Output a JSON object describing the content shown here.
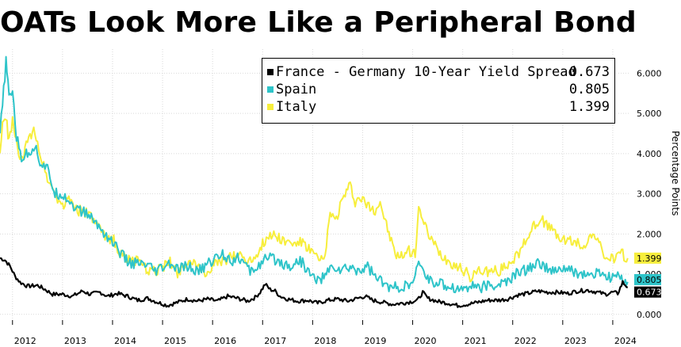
{
  "title": "OATs Look More Like a Peripheral Bond",
  "chart_data": {
    "type": "line",
    "title": "OATs Look More Like a Peripheral Bond",
    "ylabel": "Percentage Points",
    "xlabel": "",
    "ylim": [
      -0.3,
      6.6
    ],
    "yticks": [
      "0.000",
      "1.000",
      "2.000",
      "3.000",
      "4.000",
      "5.000",
      "6.000"
    ],
    "ytick_values": [
      0,
      1,
      2,
      3,
      4,
      5,
      6
    ],
    "xticks": [
      "2012",
      "2013",
      "2014",
      "2015",
      "2016",
      "2017",
      "2018",
      "2019",
      "2020",
      "2021",
      "2022",
      "2023",
      "2024"
    ],
    "xtick_values": [
      2012.0,
      2013.0,
      2014.0,
      2015.0,
      2016.0,
      2017.0,
      2018.0,
      2019.0,
      2020.0,
      2021.0,
      2022.0,
      2023.0,
      2024.0
    ],
    "x_range": [
      2011.75,
      2024.35
    ],
    "grid": true,
    "legend_position": "top-right",
    "series": [
      {
        "name": "France - Germany 10-Year Yield Spread",
        "color": "#000000",
        "last_label": "0.673",
        "points": [
          [
            2011.75,
            1.4
          ],
          [
            2011.85,
            1.35
          ],
          [
            2011.95,
            1.2
          ],
          [
            2012.05,
            0.95
          ],
          [
            2012.15,
            0.8
          ],
          [
            2012.3,
            0.7
          ],
          [
            2012.5,
            0.72
          ],
          [
            2012.65,
            0.62
          ],
          [
            2012.8,
            0.5
          ],
          [
            2013.0,
            0.5
          ],
          [
            2013.2,
            0.45
          ],
          [
            2013.4,
            0.58
          ],
          [
            2013.55,
            0.5
          ],
          [
            2013.75,
            0.55
          ],
          [
            2013.9,
            0.45
          ],
          [
            2014.1,
            0.52
          ],
          [
            2014.3,
            0.45
          ],
          [
            2014.5,
            0.35
          ],
          [
            2014.7,
            0.4
          ],
          [
            2014.9,
            0.3
          ],
          [
            2015.1,
            0.22
          ],
          [
            2015.3,
            0.3
          ],
          [
            2015.5,
            0.38
          ],
          [
            2015.7,
            0.33
          ],
          [
            2015.9,
            0.38
          ],
          [
            2016.1,
            0.33
          ],
          [
            2016.3,
            0.45
          ],
          [
            2016.5,
            0.4
          ],
          [
            2016.7,
            0.33
          ],
          [
            2016.85,
            0.42
          ],
          [
            2016.95,
            0.55
          ],
          [
            2017.05,
            0.75
          ],
          [
            2017.15,
            0.62
          ],
          [
            2017.25,
            0.58
          ],
          [
            2017.35,
            0.45
          ],
          [
            2017.5,
            0.38
          ],
          [
            2017.7,
            0.33
          ],
          [
            2017.9,
            0.35
          ],
          [
            2018.1,
            0.28
          ],
          [
            2018.3,
            0.35
          ],
          [
            2018.5,
            0.38
          ],
          [
            2018.7,
            0.33
          ],
          [
            2018.9,
            0.4
          ],
          [
            2019.05,
            0.45
          ],
          [
            2019.2,
            0.35
          ],
          [
            2019.4,
            0.3
          ],
          [
            2019.6,
            0.25
          ],
          [
            2019.8,
            0.28
          ],
          [
            2019.9,
            0.3
          ],
          [
            2020.1,
            0.35
          ],
          [
            2020.2,
            0.55
          ],
          [
            2020.3,
            0.4
          ],
          [
            2020.5,
            0.32
          ],
          [
            2020.7,
            0.28
          ],
          [
            2020.9,
            0.22
          ],
          [
            2021.1,
            0.25
          ],
          [
            2021.3,
            0.3
          ],
          [
            2021.5,
            0.35
          ],
          [
            2021.7,
            0.35
          ],
          [
            2021.9,
            0.38
          ],
          [
            2022.1,
            0.48
          ],
          [
            2022.3,
            0.52
          ],
          [
            2022.5,
            0.58
          ],
          [
            2022.7,
            0.55
          ],
          [
            2022.9,
            0.55
          ],
          [
            2023.1,
            0.52
          ],
          [
            2023.3,
            0.58
          ],
          [
            2023.5,
            0.6
          ],
          [
            2023.7,
            0.55
          ],
          [
            2023.85,
            0.5
          ],
          [
            2024.0,
            0.55
          ],
          [
            2024.1,
            0.52
          ],
          [
            2024.2,
            0.8
          ],
          [
            2024.25,
            0.73
          ],
          [
            2024.3,
            0.673
          ]
        ]
      },
      {
        "name": "Spain",
        "color": "#2ec4c9",
        "last_label": "0.805",
        "points": [
          [
            2011.75,
            4.5
          ],
          [
            2011.8,
            5.2
          ],
          [
            2011.87,
            6.3
          ],
          [
            2011.93,
            5.4
          ],
          [
            2012.0,
            5.6
          ],
          [
            2012.08,
            4.4
          ],
          [
            2012.18,
            3.9
          ],
          [
            2012.3,
            4.0
          ],
          [
            2012.45,
            4.2
          ],
          [
            2012.55,
            3.8
          ],
          [
            2012.7,
            3.6
          ],
          [
            2012.85,
            3.0
          ],
          [
            2013.0,
            3.0
          ],
          [
            2013.15,
            2.8
          ],
          [
            2013.3,
            2.6
          ],
          [
            2013.5,
            2.5
          ],
          [
            2013.65,
            2.3
          ],
          [
            2013.85,
            2.0
          ],
          [
            2014.0,
            1.8
          ],
          [
            2014.15,
            1.55
          ],
          [
            2014.3,
            1.3
          ],
          [
            2014.5,
            1.25
          ],
          [
            2014.7,
            1.2
          ],
          [
            2014.85,
            1.05
          ],
          [
            2015.0,
            1.15
          ],
          [
            2015.15,
            1.25
          ],
          [
            2015.3,
            1.1
          ],
          [
            2015.5,
            1.2
          ],
          [
            2015.7,
            1.05
          ],
          [
            2015.9,
            1.25
          ],
          [
            2016.05,
            1.4
          ],
          [
            2016.2,
            1.5
          ],
          [
            2016.4,
            1.35
          ],
          [
            2016.55,
            1.4
          ],
          [
            2016.75,
            1.05
          ],
          [
            2016.9,
            1.2
          ],
          [
            2017.05,
            1.35
          ],
          [
            2017.2,
            1.4
          ],
          [
            2017.35,
            1.3
          ],
          [
            2017.55,
            1.2
          ],
          [
            2017.75,
            1.35
          ],
          [
            2017.95,
            1.0
          ],
          [
            2018.1,
            0.85
          ],
          [
            2018.25,
            0.95
          ],
          [
            2018.4,
            1.2
          ],
          [
            2018.55,
            1.1
          ],
          [
            2018.75,
            1.15
          ],
          [
            2018.95,
            1.1
          ],
          [
            2019.1,
            1.2
          ],
          [
            2019.25,
            0.95
          ],
          [
            2019.45,
            0.72
          ],
          [
            2019.6,
            0.65
          ],
          [
            2019.75,
            0.7
          ],
          [
            2019.9,
            0.68
          ],
          [
            2020.05,
            0.85
          ],
          [
            2020.12,
            1.4
          ],
          [
            2020.2,
            1.05
          ],
          [
            2020.35,
            0.85
          ],
          [
            2020.55,
            0.75
          ],
          [
            2020.75,
            0.7
          ],
          [
            2020.95,
            0.62
          ],
          [
            2021.15,
            0.72
          ],
          [
            2021.35,
            0.68
          ],
          [
            2021.55,
            0.7
          ],
          [
            2021.75,
            0.75
          ],
          [
            2021.95,
            0.85
          ],
          [
            2022.1,
            1.05
          ],
          [
            2022.25,
            1.1
          ],
          [
            2022.4,
            1.2
          ],
          [
            2022.55,
            1.3
          ],
          [
            2022.7,
            1.1
          ],
          [
            2022.85,
            1.05
          ],
          [
            2023.0,
            1.15
          ],
          [
            2023.2,
            1.05
          ],
          [
            2023.4,
            1.0
          ],
          [
            2023.6,
            0.95
          ],
          [
            2023.75,
            1.05
          ],
          [
            2023.9,
            0.9
          ],
          [
            2024.05,
            0.95
          ],
          [
            2024.2,
            0.85
          ],
          [
            2024.3,
            0.805
          ]
        ]
      },
      {
        "name": "Italy",
        "color": "#f7ee3c",
        "last_label": "1.399",
        "points": [
          [
            2011.75,
            4.0
          ],
          [
            2011.8,
            4.7
          ],
          [
            2011.87,
            4.9
          ],
          [
            2011.93,
            4.3
          ],
          [
            2012.0,
            4.8
          ],
          [
            2012.1,
            4.1
          ],
          [
            2012.2,
            3.8
          ],
          [
            2012.3,
            4.3
          ],
          [
            2012.45,
            4.6
          ],
          [
            2012.55,
            4.0
          ],
          [
            2012.7,
            3.4
          ],
          [
            2012.85,
            3.0
          ],
          [
            2013.0,
            2.7
          ],
          [
            2013.15,
            2.9
          ],
          [
            2013.3,
            2.6
          ],
          [
            2013.5,
            2.5
          ],
          [
            2013.65,
            2.3
          ],
          [
            2013.85,
            1.9
          ],
          [
            2014.0,
            1.9
          ],
          [
            2014.15,
            1.5
          ],
          [
            2014.3,
            1.4
          ],
          [
            2014.5,
            1.3
          ],
          [
            2014.7,
            1.1
          ],
          [
            2014.85,
            1.05
          ],
          [
            2015.0,
            1.2
          ],
          [
            2015.15,
            1.3
          ],
          [
            2015.3,
            1.05
          ],
          [
            2015.5,
            1.35
          ],
          [
            2015.7,
            1.15
          ],
          [
            2015.9,
            1.05
          ],
          [
            2016.05,
            1.25
          ],
          [
            2016.2,
            1.3
          ],
          [
            2016.4,
            1.45
          ],
          [
            2016.55,
            1.5
          ],
          [
            2016.75,
            1.3
          ],
          [
            2016.9,
            1.55
          ],
          [
            2017.05,
            1.85
          ],
          [
            2017.2,
            2.0
          ],
          [
            2017.35,
            1.9
          ],
          [
            2017.55,
            1.75
          ],
          [
            2017.75,
            1.8
          ],
          [
            2017.95,
            1.6
          ],
          [
            2018.05,
            1.45
          ],
          [
            2018.15,
            1.3
          ],
          [
            2018.25,
            1.4
          ],
          [
            2018.35,
            2.6
          ],
          [
            2018.45,
            2.3
          ],
          [
            2018.55,
            2.7
          ],
          [
            2018.65,
            3.0
          ],
          [
            2018.75,
            3.2
          ],
          [
            2018.85,
            2.8
          ],
          [
            2018.95,
            2.9
          ],
          [
            2019.1,
            2.7
          ],
          [
            2019.25,
            2.6
          ],
          [
            2019.35,
            2.8
          ],
          [
            2019.45,
            2.3
          ],
          [
            2019.55,
            1.9
          ],
          [
            2019.65,
            1.5
          ],
          [
            2019.75,
            1.4
          ],
          [
            2019.9,
            1.6
          ],
          [
            2020.05,
            1.5
          ],
          [
            2020.12,
            2.75
          ],
          [
            2020.2,
            2.3
          ],
          [
            2020.35,
            1.9
          ],
          [
            2020.55,
            1.5
          ],
          [
            2020.75,
            1.3
          ],
          [
            2020.95,
            1.15
          ],
          [
            2021.15,
            0.95
          ],
          [
            2021.35,
            1.1
          ],
          [
            2021.55,
            1.05
          ],
          [
            2021.75,
            1.1
          ],
          [
            2021.95,
            1.3
          ],
          [
            2022.1,
            1.5
          ],
          [
            2022.25,
            1.8
          ],
          [
            2022.4,
            2.2
          ],
          [
            2022.55,
            2.4
          ],
          [
            2022.7,
            2.2
          ],
          [
            2022.85,
            2.0
          ],
          [
            2023.0,
            1.85
          ],
          [
            2023.2,
            1.8
          ],
          [
            2023.4,
            1.7
          ],
          [
            2023.55,
            1.9
          ],
          [
            2023.65,
            2.0
          ],
          [
            2023.8,
            1.5
          ],
          [
            2023.95,
            1.35
          ],
          [
            2024.1,
            1.45
          ],
          [
            2024.2,
            1.5
          ],
          [
            2024.3,
            1.399
          ]
        ]
      }
    ]
  }
}
